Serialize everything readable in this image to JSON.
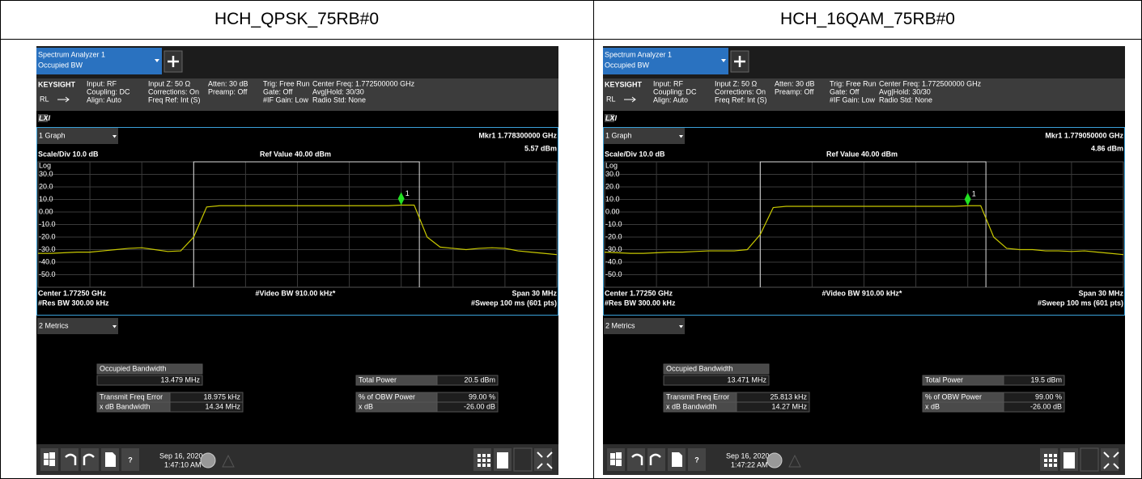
{
  "table": {
    "headers": [
      "HCH_QPSK_75RB#0",
      "HCH_16QAM_75RB#0"
    ]
  },
  "panels": [
    {
      "tab": [
        "Spectrum Analyzer 1",
        "Occupied BW"
      ],
      "brand": "KEYSIGHT",
      "rl": "RL",
      "lxi": "LXI",
      "info": [
        [
          "Input: RF",
          "Coupling: DC",
          "Align: Auto"
        ],
        [
          "Input Z: 50 Ω",
          "Corrections: On",
          "Freq Ref: Int (S)"
        ],
        [
          "Atten: 30 dB",
          "Preamp: Off"
        ],
        [
          "Trig: Free Run",
          "Gate: Off",
          "#IF Gain: Low"
        ],
        [
          "Center Freq: 1.772500000 GHz",
          "Avg|Hold: 30/30",
          "Radio Std: None"
        ]
      ],
      "graph": {
        "tab": "1 Graph",
        "marker": "Mkr1 1.778300000 GHz",
        "marker_value": "5.57 dBm",
        "scale": "Scale/Div 10.0 dB",
        "ref": "Ref Value 40.00 dBm",
        "log": "Log",
        "marker_label": "1",
        "color": "#c8c800",
        "ylim": [
          -60,
          40
        ],
        "yticks": [
          {
            "value": 30,
            "label": "30.0"
          },
          {
            "value": 20,
            "label": "20.0"
          },
          {
            "value": 10,
            "label": "10.0"
          },
          {
            "value": 0,
            "label": "0.00"
          },
          {
            "value": -10,
            "label": "-10.0"
          },
          {
            "value": -20,
            "label": "-20.0"
          },
          {
            "value": -30,
            "label": "-30.0"
          },
          {
            "value": -40,
            "label": "-40.0"
          },
          {
            "value": -50,
            "label": "-50.0"
          }
        ],
        "trace": [
          -33,
          -33,
          -32.5,
          -32,
          -32,
          -31,
          -30,
          -29,
          -28.5,
          -30,
          -31.5,
          -31,
          -20,
          4,
          5,
          5,
          5,
          5,
          5,
          5,
          5,
          5,
          5,
          5,
          5,
          5,
          5,
          5,
          5.5,
          5.5,
          -20,
          -28,
          -29,
          -30,
          -29,
          -28.5,
          -29,
          -31,
          -32,
          -33,
          -34
        ],
        "footer": [
          "Center 1.77250 GHz",
          "#Video BW 910.00 kHz*",
          "Span 30 MHz",
          "#Res BW 300.00 kHz",
          "#Sweep 100 ms (601 pts)"
        ]
      },
      "metrics": {
        "tab": "2 Metrics",
        "obw": [
          "Occupied Bandwidth",
          "13.479 MHz"
        ],
        "left": [
          [
            "Transmit Freq Error",
            "18.975 kHz"
          ],
          [
            "x dB Bandwidth",
            "14.34 MHz"
          ]
        ],
        "right": [
          [
            "Total Power",
            "20.5 dBm"
          ],
          [
            "% of OBW Power",
            "99.00 %"
          ],
          [
            "x dB",
            "-26.00 dB"
          ]
        ]
      },
      "taskbar": {
        "help": "?",
        "date": "Sep 16, 2020",
        "time": "1:47:10 AM"
      }
    },
    {
      "tab": [
        "Spectrum Analyzer 1",
        "Occupied BW"
      ],
      "brand": "KEYSIGHT",
      "rl": "RL",
      "lxi": "LXI",
      "info": [
        [
          "Input: RF",
          "Coupling: DC",
          "Align: Auto"
        ],
        [
          "Input Z: 50 Ω",
          "Corrections: On",
          "Freq Ref: Int (S)"
        ],
        [
          "Atten: 30 dB",
          "Preamp: Off"
        ],
        [
          "Trig: Free Run",
          "Gate: Off",
          "#IF Gain: Low"
        ],
        [
          "Center Freq: 1.772500000 GHz",
          "Avg|Hold: 30/30",
          "Radio Std: None"
        ]
      ],
      "graph": {
        "tab": "1 Graph",
        "marker": "Mkr1 1.779050000 GHz",
        "marker_value": "4.86 dBm",
        "scale": "Scale/Div 10.0 dB",
        "ref": "Ref Value 40.00 dBm",
        "log": "Log",
        "marker_label": "1",
        "color": "#c8c800",
        "ylim": [
          -60,
          40
        ],
        "yticks": [
          {
            "value": 30,
            "label": "30.0"
          },
          {
            "value": 20,
            "label": "20.0"
          },
          {
            "value": 10,
            "label": "10.0"
          },
          {
            "value": 0,
            "label": "0.00"
          },
          {
            "value": -10,
            "label": "-10.0"
          },
          {
            "value": -20,
            "label": "-20.0"
          },
          {
            "value": -30,
            "label": "-30.0"
          },
          {
            "value": -40,
            "label": "-40.0"
          },
          {
            "value": -50,
            "label": "-50.0"
          }
        ],
        "trace": [
          -32,
          -32.5,
          -33,
          -33,
          -32.5,
          -32,
          -32,
          -31.5,
          -31,
          -31,
          -31,
          -30,
          -18,
          3.5,
          4.5,
          4.5,
          4.5,
          4.5,
          4.5,
          4.5,
          4.5,
          4.5,
          4.5,
          4.5,
          4.5,
          4.5,
          4.5,
          4.5,
          5,
          5,
          -20,
          -29,
          -30,
          -30,
          -31,
          -31,
          -31.5,
          -31,
          -32,
          -33,
          -34
        ],
        "footer": [
          "Center 1.77250 GHz",
          "#Video BW 910.00 kHz*",
          "Span 30 MHz",
          "#Res BW 300.00 kHz",
          "#Sweep 100 ms (601 pts)"
        ]
      },
      "metrics": {
        "tab": "2 Metrics",
        "obw": [
          "Occupied Bandwidth",
          "13.471 MHz"
        ],
        "left": [
          [
            "Transmit Freq Error",
            "25.813 kHz"
          ],
          [
            "x dB Bandwidth",
            "14.27 MHz"
          ]
        ],
        "right": [
          [
            "Total Power",
            "19.5 dBm"
          ],
          [
            "% of OBW Power",
            "99.00 %"
          ],
          [
            "x dB",
            "-26.00 dB"
          ]
        ]
      },
      "taskbar": {
        "help": "?",
        "date": "Sep 16, 2020",
        "time": "1:47:22 AM"
      }
    }
  ]
}
